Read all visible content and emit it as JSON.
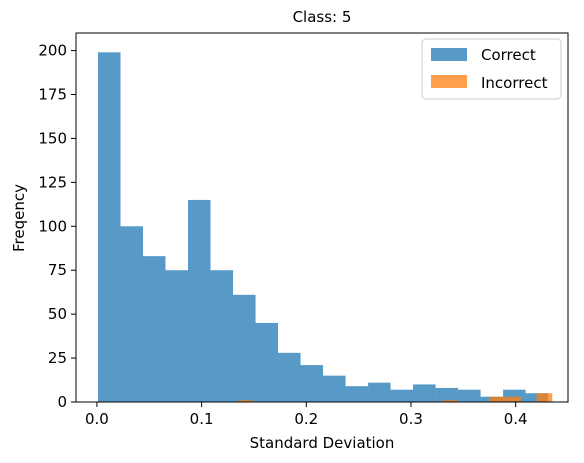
{
  "chart_data": {
    "type": "bar",
    "title": "Class: 5",
    "xlabel": "Standard Deviation",
    "ylabel": "Freqency",
    "xlim": [
      -0.02,
      0.45
    ],
    "ylim": [
      0,
      210
    ],
    "xticks": [
      0.0,
      0.1,
      0.2,
      0.3,
      0.4
    ],
    "xtick_labels": [
      "0.0",
      "0.1",
      "0.2",
      "0.3",
      "0.4"
    ],
    "yticks": [
      0,
      25,
      50,
      75,
      100,
      125,
      150,
      175,
      200
    ],
    "ytick_labels": [
      "0",
      "25",
      "50",
      "75",
      "100",
      "125",
      "150",
      "175",
      "200"
    ],
    "grid": false,
    "legend_position": "top-right",
    "series": [
      {
        "name": "Correct",
        "color": "#1f77b4",
        "opacity": 0.75,
        "bin_edges": [
          0.001,
          0.0225,
          0.044,
          0.0655,
          0.087,
          0.1085,
          0.13,
          0.1515,
          0.173,
          0.1945,
          0.216,
          0.2375,
          0.259,
          0.2805,
          0.302,
          0.3235,
          0.345,
          0.3665,
          0.388,
          0.4095,
          0.431
        ],
        "values": [
          199,
          100,
          83,
          75,
          115,
          75,
          61,
          45,
          28,
          21,
          15,
          9,
          11,
          7,
          10,
          8,
          7,
          3,
          7,
          5
        ]
      },
      {
        "name": "Incorrect",
        "color": "#ff7f0e",
        "opacity": 0.75,
        "bin_edges": [
          0.135,
          0.15,
          0.33,
          0.345,
          0.36,
          0.375,
          0.39,
          0.405,
          0.42,
          0.435
        ],
        "values": [
          1,
          0,
          0,
          1,
          0,
          3,
          3,
          0,
          5
        ],
        "bar_edges": [
          [
            0.135,
            0.15
          ],
          [
            0.33,
            0.345
          ],
          [
            0.375,
            0.39
          ],
          [
            0.39,
            0.405
          ],
          [
            0.42,
            0.435
          ]
        ],
        "bar_values": [
          1,
          1,
          3,
          3,
          5
        ]
      }
    ]
  }
}
